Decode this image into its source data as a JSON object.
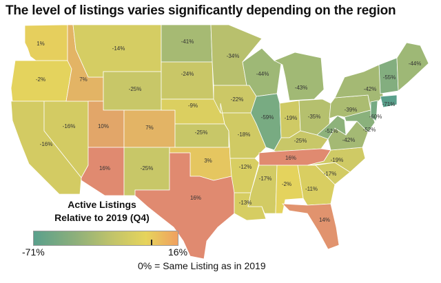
{
  "title": "The level of listings varies significantly depending on the region",
  "legend": {
    "title_line1": "Active Listings",
    "title_line2": "Relative to 2019 (Q4)",
    "min": "-71%",
    "max": "16%",
    "min_value": -71,
    "max_value": 16,
    "zero_marker": 0
  },
  "note": "0% = Same Listing as in 2019",
  "colors": {
    "low": "#5aa08c",
    "mid": "#c2c46a",
    "zero": "#e6d45c",
    "high": "#e08a70",
    "border": "#ffffff"
  },
  "regions": [
    {
      "name": "Washington",
      "label": "1%",
      "value": 1
    },
    {
      "name": "Oregon",
      "label": "-2%",
      "value": -2
    },
    {
      "name": "California",
      "label": "-16%",
      "value": -16
    },
    {
      "name": "Nevada",
      "label": "-16%",
      "value": -16
    },
    {
      "name": "Idaho",
      "label": "7%",
      "value": 7
    },
    {
      "name": "Montana",
      "label": "-14%",
      "value": -14
    },
    {
      "name": "Wyoming",
      "label": "-25%",
      "value": -25
    },
    {
      "name": "Utah",
      "label": "10%",
      "value": 10
    },
    {
      "name": "Colorado",
      "label": "7%",
      "value": 7
    },
    {
      "name": "Arizona",
      "label": "16%",
      "value": 16
    },
    {
      "name": "New Mexico",
      "label": "-25%",
      "value": -25
    },
    {
      "name": "North Dakota",
      "label": "-41%",
      "value": -41
    },
    {
      "name": "South Dakota",
      "label": "-24%",
      "value": -24
    },
    {
      "name": "Nebraska",
      "label": "-9%",
      "value": -9
    },
    {
      "name": "Kansas",
      "label": "-25%",
      "value": -25
    },
    {
      "name": "Oklahoma",
      "label": "3%",
      "value": 3
    },
    {
      "name": "Texas",
      "label": "16%",
      "value": 16
    },
    {
      "name": "Minnesota",
      "label": "-34%",
      "value": -34
    },
    {
      "name": "Iowa",
      "label": "-22%",
      "value": -22
    },
    {
      "name": "Missouri",
      "label": "-18%",
      "value": -18
    },
    {
      "name": "Arkansas",
      "label": "-12%",
      "value": -12
    },
    {
      "name": "Louisiana",
      "label": "-13%",
      "value": -13
    },
    {
      "name": "Wisconsin",
      "label": "-44%",
      "value": -44
    },
    {
      "name": "Illinois",
      "label": "-59%",
      "value": -59
    },
    {
      "name": "Michigan",
      "label": "-43%",
      "value": -43
    },
    {
      "name": "Indiana",
      "label": "-19%",
      "value": -19
    },
    {
      "name": "Ohio",
      "label": "-35%",
      "value": -35
    },
    {
      "name": "Kentucky",
      "label": "-25%",
      "value": -25
    },
    {
      "name": "Tennessee",
      "label": "16%",
      "value": 16
    },
    {
      "name": "Mississippi",
      "label": "-17%",
      "value": -17
    },
    {
      "name": "Alabama",
      "label": "-2%",
      "value": -2
    },
    {
      "name": "Georgia",
      "label": "-11%",
      "value": -11
    },
    {
      "name": "Florida",
      "label": "14%",
      "value": 14
    },
    {
      "name": "South Carolina",
      "label": "-17%",
      "value": -17
    },
    {
      "name": "North Carolina",
      "label": "-19%",
      "value": -19
    },
    {
      "name": "Virginia",
      "label": "-42%",
      "value": -42
    },
    {
      "name": "West Virginia",
      "label": "-51%",
      "value": -51
    },
    {
      "name": "Pennsylvania",
      "label": "-39%",
      "value": -39
    },
    {
      "name": "New York",
      "label": "-42%",
      "value": -42
    },
    {
      "name": "Maryland",
      "label": "-52%",
      "value": -52
    },
    {
      "name": "New Jersey",
      "label": "-60%",
      "value": -60
    },
    {
      "name": "Connecticut",
      "label": "-71%",
      "value": -71
    },
    {
      "name": "Vermont/New Hampshire",
      "label": "-55%",
      "value": -55
    },
    {
      "name": "Maine",
      "label": "-44%",
      "value": -44
    }
  ]
}
